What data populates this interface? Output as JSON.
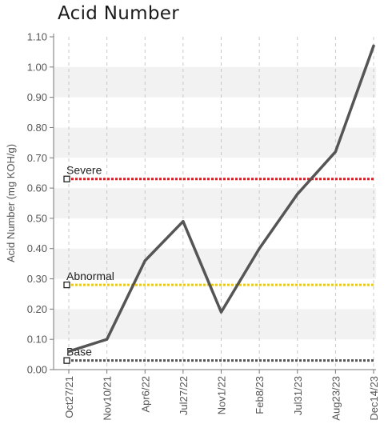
{
  "chart_data": {
    "type": "line",
    "title": "Acid Number",
    "ylabel": "Acid Number (mg KOH/g)",
    "xlabel": "",
    "ylim": [
      0,
      1.1
    ],
    "yticks": [
      "0.00",
      "0.10",
      "0.20",
      "0.30",
      "0.40",
      "0.50",
      "0.60",
      "0.70",
      "0.80",
      "0.90",
      "1.00",
      "1.10"
    ],
    "categories": [
      "Oct27/21",
      "Nov10/21",
      "Apr6/22",
      "Jul27/22",
      "Nov1/22",
      "Feb8/23",
      "Jul31/23",
      "Aug23/23",
      "Dec14/23"
    ],
    "series": [
      {
        "values": [
          0.06,
          0.1,
          0.36,
          0.49,
          0.19,
          0.4,
          0.58,
          0.72,
          1.07
        ],
        "color": "#555555"
      }
    ],
    "limits": [
      {
        "label": "Severe",
        "value": 0.63,
        "color": "#e8141c"
      },
      {
        "label": "Abnormal",
        "value": 0.28,
        "color": "#f0cc00"
      },
      {
        "label": "Base",
        "value": 0.03,
        "color": "#555555"
      }
    ],
    "grid": true,
    "legend": "none"
  }
}
